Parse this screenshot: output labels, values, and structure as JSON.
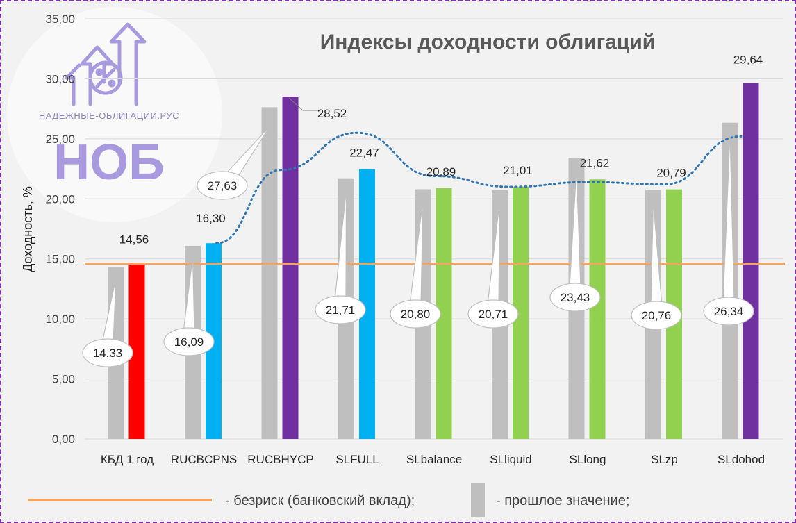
{
  "logo": {
    "site_text": "НАДЕЖНЫЕ-ОБЛИГАЦИИ.РУС",
    "big_text": "НОБ"
  },
  "chart_data": {
    "type": "bar",
    "title": "Индексы доходности облигаций",
    "ylabel": "Доходность, %",
    "xlabel": "",
    "ylim": [
      0,
      35
    ],
    "yticks": [
      "0,00",
      "5,00",
      "10,00",
      "15,00",
      "20,00",
      "25,00",
      "30,00",
      "35,00"
    ],
    "grid": true,
    "categories": [
      "КБД 1 год",
      "RUCBCPNS",
      "RUCBHYCP",
      "SLFULL",
      "SLbalance",
      "SLliquid",
      "SLlong",
      "SLzp",
      "SLdohod"
    ],
    "series": [
      {
        "name": "прошлое значение",
        "color": "#bfbfbf",
        "values": [
          14.33,
          16.09,
          27.63,
          21.71,
          20.8,
          20.71,
          23.43,
          20.76,
          26.34
        ],
        "labels": [
          "14,33",
          "16,09",
          "27,63",
          "21,71",
          "20,80",
          "20,71",
          "23,43",
          "20,76",
          "26,34"
        ]
      },
      {
        "name": "",
        "colors": [
          "#ff0000",
          "#00b0f0",
          "#7030a0",
          "#00b0f0",
          "#92d050",
          "#92d050",
          "#92d050",
          "#92d050",
          "#7030a0"
        ],
        "values": [
          14.56,
          16.3,
          28.52,
          22.47,
          20.89,
          21.01,
          21.62,
          20.79,
          29.64
        ],
        "labels": [
          "14,56",
          "16,30",
          "28,52",
          "22,47",
          "20,89",
          "21,01",
          "21,62",
          "20,79",
          "29,64"
        ]
      }
    ],
    "trend_line": {
      "style": "dotted",
      "color": "#2e75b6",
      "values": [
        null,
        16.3,
        22.4,
        25.5,
        21.9,
        21.0,
        21.4,
        21.2,
        25.2
      ]
    },
    "risk_free_line": {
      "value": 14.6,
      "color": "#f4a460"
    },
    "legend": {
      "position": "bottom",
      "items": [
        {
          "symbol": "line",
          "color": "#f4a460",
          "text": "- безриск (банковский вклад);"
        },
        {
          "symbol": "bar",
          "color": "#bfbfbf",
          "text": "- прошлое значение;"
        }
      ]
    }
  }
}
